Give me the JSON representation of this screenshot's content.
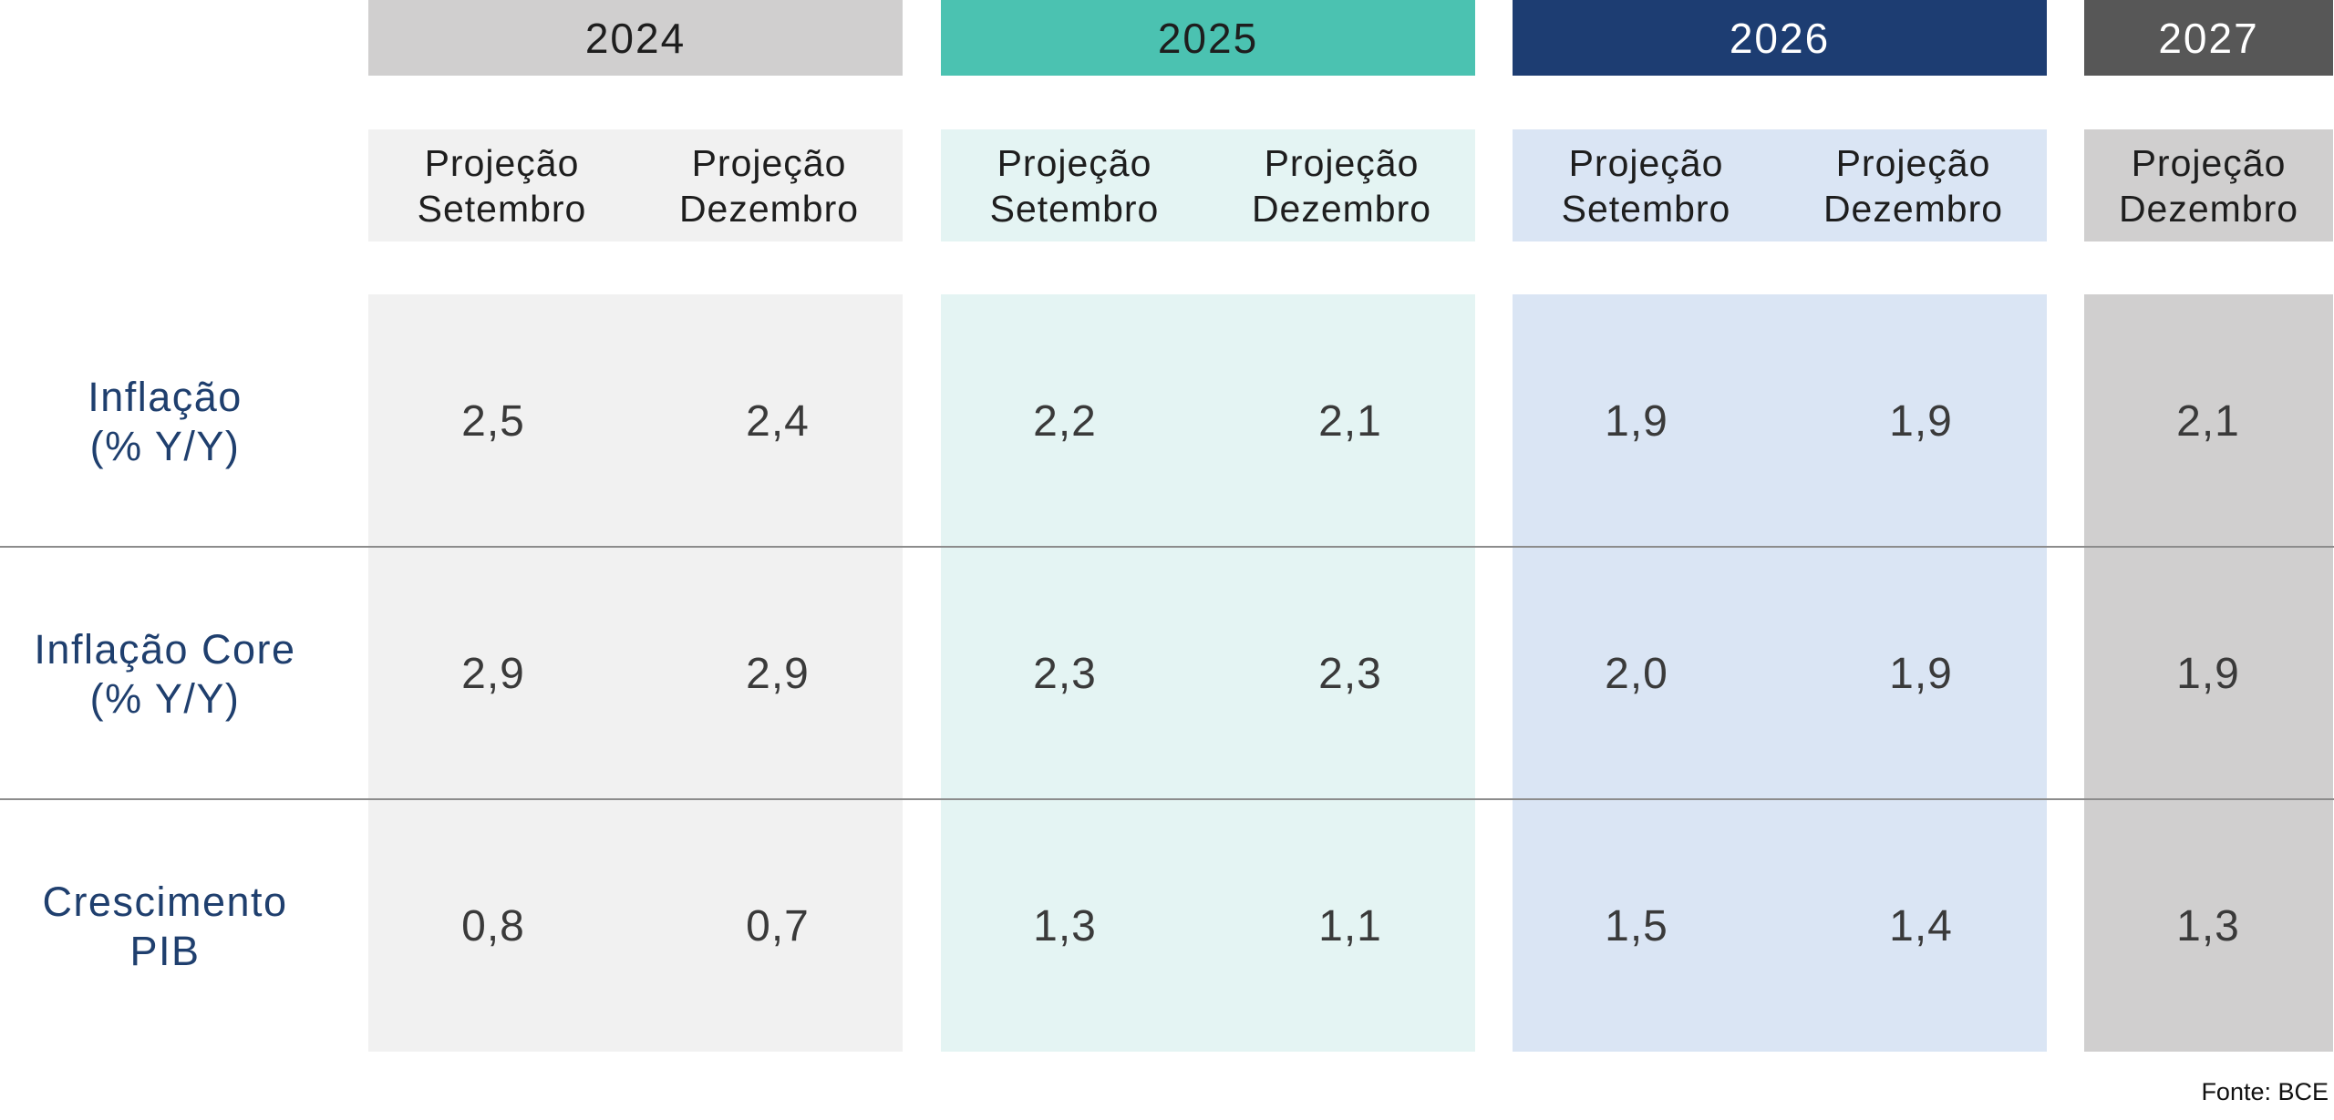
{
  "chart_data": {
    "type": "table",
    "years": [
      {
        "label": "2024",
        "header_color": "#d0cfcf",
        "header_text_color": "#1e1e1e",
        "sub_color": "#f1f1f1",
        "body_color": "#f1f1f1"
      },
      {
        "label": "2025",
        "header_color": "#4bc2b1",
        "header_text_color": "#1e1e1e",
        "sub_color": "#e4f4f3",
        "body_color": "#e4f4f3"
      },
      {
        "label": "2026",
        "header_color": "#1d3d72",
        "header_text_color": "#ffffff",
        "sub_color": "#dae5f4",
        "body_color": "#dae5f4"
      },
      {
        "label": "2027",
        "header_color": "#575757",
        "header_text_color": "#ffffff",
        "sub_color": "#d0cfcf",
        "body_color": "#d0cfcf"
      }
    ],
    "columns": [
      {
        "year": "2024",
        "line1": "Projeção",
        "line2": "Setembro"
      },
      {
        "year": "2024",
        "line1": "Projeção",
        "line2": "Dezembro"
      },
      {
        "year": "2025",
        "line1": "Projeção",
        "line2": "Setembro"
      },
      {
        "year": "2025",
        "line1": "Projeção",
        "line2": "Dezembro"
      },
      {
        "year": "2026",
        "line1": "Projeção",
        "line2": "Setembro"
      },
      {
        "year": "2026",
        "line1": "Projeção",
        "line2": "Dezembro"
      },
      {
        "year": "2027",
        "line1": "Projeção",
        "line2": "Dezembro"
      }
    ],
    "rows": [
      {
        "line1": "Inflação",
        "line2": "(% Y/Y)",
        "values": [
          "2,5",
          "2,4",
          "2,2",
          "2,1",
          "1,9",
          "1,9",
          "2,1"
        ]
      },
      {
        "line1": "Inflação Core",
        "line2": "(% Y/Y)",
        "values": [
          "2,9",
          "2,9",
          "2,3",
          "2,3",
          "2,0",
          "1,9",
          "1,9"
        ]
      },
      {
        "line1": "Crescimento",
        "line2": "PIB",
        "values": [
          "0,8",
          "0,7",
          "1,3",
          "1,1",
          "1,5",
          "1,4",
          "1,3"
        ]
      }
    ],
    "source": "Fonte: BCE",
    "row_label_color": "#1f3f6e",
    "divider_color": "#8c8c8c"
  }
}
